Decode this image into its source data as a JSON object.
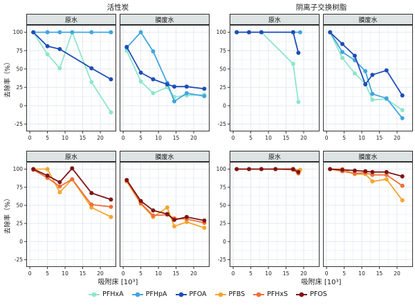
{
  "chart_data": {
    "type": "line",
    "groups": [
      "活性炭",
      "阴离子交换树脂"
    ],
    "facets": [
      "原水",
      "膜废水"
    ],
    "ylabel": "去除率（%）",
    "xlabel": "吸附床 [10³]",
    "yticks": [
      100,
      75,
      50,
      25,
      0,
      -25
    ],
    "xticks": [
      0,
      5,
      10,
      15,
      20
    ],
    "xlim": [
      -1,
      24.5
    ],
    "ylim": [
      -35,
      110
    ],
    "legend": [
      "PFHxA",
      "PFHpA",
      "PFOA",
      "PFBS",
      "PFHxS",
      "PFOS"
    ],
    "colors": {
      "PFHxA": "#8EE6CC",
      "PFHpA": "#42A5DF",
      "PFOA": "#1E4DB7",
      "PFBS": "#F5A62F",
      "PFHxS": "#EF6F38",
      "PFOS": "#7E1416"
    },
    "strip_background": "#dce3e2",
    "panels": [
      {
        "group": "活性炭",
        "facet": "原水",
        "series": [
          {
            "name": "PFHxA",
            "x": [
              1,
              5,
              8.5,
              12,
              17.5,
              23
            ],
            "y": [
              100,
              70,
              51,
              100,
              32,
              -9
            ]
          },
          {
            "name": "PFHpA",
            "x": [
              1,
              5,
              8.5,
              12,
              17.5,
              23
            ],
            "y": [
              100,
              100,
              100,
              100,
              100,
              100
            ]
          },
          {
            "name": "PFOA",
            "x": [
              1,
              5,
              8.5,
              17.5,
              23
            ],
            "y": [
              100,
              81,
              77,
              51,
              36
            ]
          }
        ]
      },
      {
        "group": "活性炭",
        "facet": "膜废水",
        "series": [
          {
            "name": "PFHxA",
            "x": [
              1,
              5,
              8.5,
              12.5,
              14.5,
              18,
              23
            ],
            "y": [
              75,
              33,
              17,
              25,
              12,
              14,
              15
            ]
          },
          {
            "name": "PFHpA",
            "x": [
              1,
              5,
              8.5,
              12.5,
              14.5,
              18,
              23
            ],
            "y": [
              79,
              100,
              74,
              31,
              6,
              17,
              13
            ]
          },
          {
            "name": "PFOA",
            "x": [
              1,
              5,
              8.5,
              12.5,
              14.5,
              18,
              23
            ],
            "y": [
              80,
              45,
              36,
              29,
              26,
              26,
              23
            ]
          }
        ]
      },
      {
        "group": "阴离子交换树脂",
        "facet": "原水",
        "series": [
          {
            "name": "PFHxA",
            "x": [
              1,
              4.5,
              8,
              17,
              18.5
            ],
            "y": [
              100,
              100,
              100,
              57,
              5
            ]
          },
          {
            "name": "PFHpA",
            "x": [
              1,
              4.5,
              8,
              17,
              19
            ],
            "y": [
              100,
              100,
              100,
              100,
              100
            ]
          },
          {
            "name": "PFOA",
            "x": [
              1,
              4.5,
              8,
              17,
              18.5
            ],
            "y": [
              100,
              100,
              100,
              100,
              72
            ]
          }
        ]
      },
      {
        "group": "阴离子交换树脂",
        "facet": "膜废水",
        "series": [
          {
            "name": "PFHxA",
            "x": [
              1,
              4.5,
              8,
              11,
              13,
              17,
              21.5
            ],
            "y": [
              100,
              65,
              44,
              30,
              8,
              9,
              -6
            ]
          },
          {
            "name": "PFHpA",
            "x": [
              1,
              4.5,
              8,
              11,
              13,
              17,
              21.5
            ],
            "y": [
              100,
              73,
              62,
              47,
              16,
              10,
              -17
            ]
          },
          {
            "name": "PFOA",
            "x": [
              1,
              4.5,
              8,
              11,
              13,
              17,
              21.5
            ],
            "y": [
              100,
              84,
              68,
              29,
              42,
              48,
              14
            ]
          }
        ]
      },
      {
        "group": "活性炭",
        "facet": "原水",
        "series": [
          {
            "name": "PFBS",
            "x": [
              1,
              5,
              8.5,
              12,
              17.5,
              23
            ],
            "y": [
              100,
              100,
              68,
              86,
              47,
              34
            ]
          },
          {
            "name": "PFHxS",
            "x": [
              1,
              5,
              8.5,
              12,
              17.5,
              23
            ],
            "y": [
              99,
              88,
              76,
              86,
              51,
              48
            ]
          },
          {
            "name": "PFOS",
            "x": [
              1,
              5,
              8.5,
              12,
              17.5,
              23
            ],
            "y": [
              100,
              91,
              82,
              101,
              67,
              58
            ]
          }
        ]
      },
      {
        "group": "活性炭",
        "facet": "膜废水",
        "series": [
          {
            "name": "PFBS",
            "x": [
              1,
              5,
              8.5,
              12.5,
              14.5,
              18,
              23
            ],
            "y": [
              83,
              52,
              34,
              47,
              21,
              27,
              19
            ]
          },
          {
            "name": "PFHxS",
            "x": [
              1,
              5,
              8.5,
              12.5,
              14.5,
              18,
              23
            ],
            "y": [
              84,
              53,
              36,
              37,
              32,
              31,
              26
            ]
          },
          {
            "name": "PFOS",
            "x": [
              1,
              5,
              8.5,
              12.5,
              14.5,
              18,
              23
            ],
            "y": [
              85,
              56,
              43,
              38,
              30,
              34,
              29
            ]
          }
        ]
      },
      {
        "group": "阴离子交换树脂",
        "facet": "原水",
        "series": [
          {
            "name": "PFBS",
            "x": [
              1,
              4.5,
              8,
              12,
              17,
              19
            ],
            "y": [
              100,
              100,
              100,
              100,
              100,
              99
            ]
          },
          {
            "name": "PFHxS",
            "x": [
              1,
              4.5,
              8,
              12,
              17,
              18.5
            ],
            "y": [
              100,
              100,
              100,
              100,
              99,
              94
            ]
          },
          {
            "name": "PFOS",
            "x": [
              1,
              4.5,
              8,
              12,
              17,
              18.5
            ],
            "y": [
              100,
              100,
              100,
              100,
              100,
              96
            ]
          }
        ]
      },
      {
        "group": "阴离子交换树脂",
        "facet": "膜废水",
        "series": [
          {
            "name": "PFBS",
            "x": [
              1,
              4.5,
              8,
              11,
              13,
              17,
              21.5
            ],
            "y": [
              100,
              100,
              93,
              93,
              83,
              86,
              57
            ]
          },
          {
            "name": "PFHxS",
            "x": [
              1,
              4.5,
              8,
              11,
              13,
              17,
              21.5
            ],
            "y": [
              100,
              97,
              94,
              95,
              92,
              92,
              77
            ]
          },
          {
            "name": "PFOS",
            "x": [
              1,
              4.5,
              8,
              11,
              13,
              17,
              21.5
            ],
            "y": [
              100,
              99,
              98,
              97,
              96,
              96,
              90
            ]
          }
        ]
      }
    ]
  }
}
